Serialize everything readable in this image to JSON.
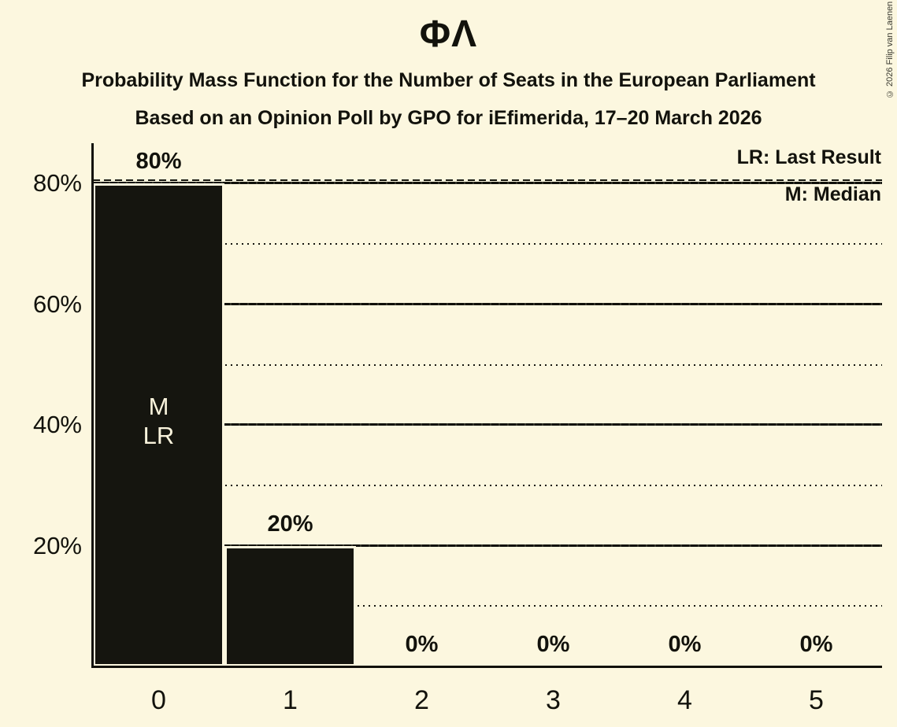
{
  "title": "ΦΛ",
  "subtitle_line1": "Probability Mass Function for the Number of Seats in the European Parliament",
  "subtitle_line2": "Based on an Opinion Poll by GPO for iEfimerida, 17–20 March 2026",
  "copyright": "© 2026 Filip van Laenen",
  "legend": {
    "lr_label": "LR: Last Result",
    "m_label": "M: Median"
  },
  "colors": {
    "background": "#FCF7DF",
    "bar": "#15150F",
    "ink": "#12120C",
    "cream_text": "#F9F3DC"
  },
  "chart_data": {
    "type": "bar",
    "title": "ΦΛ",
    "subtitle": "Probability Mass Function for the Number of Seats in the European Parliament",
    "source_note": "Based on an Opinion Poll by GPO for iEfimerida, 17–20 March 2026",
    "categories": [
      "0",
      "1",
      "2",
      "3",
      "4",
      "5"
    ],
    "values": [
      80,
      20,
      0,
      0,
      0,
      0
    ],
    "bar_labels": [
      "80%",
      "20%",
      "0%",
      "0%",
      "0%",
      "0%"
    ],
    "xlabel": "",
    "ylabel": "",
    "ylim": [
      0,
      87
    ],
    "y_ticks": [
      {
        "value": 20,
        "label": "20%"
      },
      {
        "value": 40,
        "label": "40%"
      },
      {
        "value": 60,
        "label": "60%"
      },
      {
        "value": 80,
        "label": "80%"
      }
    ],
    "major_gridlines": [
      20,
      40,
      60,
      80
    ],
    "minor_gridlines_dotted": [
      10,
      30,
      50,
      70
    ],
    "last_result_dashed_line": 80,
    "median_seats": "0",
    "last_result_seats": "0",
    "bar_annotations": [
      {
        "category": "0",
        "lines": [
          "M",
          "LR"
        ]
      }
    ],
    "legend_entries": [
      "LR: Last Result",
      "M: Median"
    ],
    "legend_position": "top-right",
    "grid": "horizontal"
  }
}
